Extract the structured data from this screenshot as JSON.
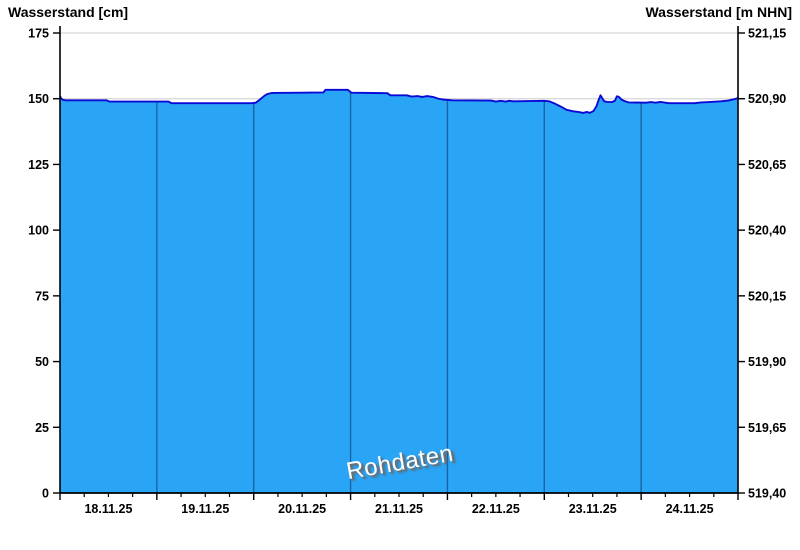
{
  "chart_data": {
    "type": "area",
    "ylabel_left": "Wasserstand [cm]",
    "ylabel_right": "Wasserstand [m NHN]",
    "watermark": "Rohdaten",
    "x_tick_labels": [
      "18.11.25",
      "19.11.25",
      "20.11.25",
      "21.11.25",
      "22.11.25",
      "23.11.25",
      "24.11.25"
    ],
    "left_tick_labels": [
      "0",
      "25",
      "50",
      "75",
      "100",
      "125",
      "150",
      "175"
    ],
    "left_tick_values": [
      0,
      25,
      50,
      75,
      100,
      125,
      150,
      175
    ],
    "right_tick_labels": [
      "519,40",
      "519,65",
      "519,90",
      "520,15",
      "520,40",
      "520,65",
      "520,90",
      "521,15"
    ],
    "ylim_cm": [
      0,
      175
    ],
    "ylim_m_nhn": [
      519.4,
      521.15
    ],
    "x_days": 7,
    "minor_ticks_per_day": 4,
    "grid_on": true,
    "series": [
      {
        "name": "Wasserstand Rohdaten",
        "unit": "cm",
        "points": [
          [
            0.0,
            150.9
          ],
          [
            0.01,
            150.2
          ],
          [
            0.03,
            149.6
          ],
          [
            0.06,
            149.4
          ],
          [
            0.48,
            149.4
          ],
          [
            0.51,
            148.9
          ],
          [
            1.12,
            148.9
          ],
          [
            1.15,
            148.3
          ],
          [
            1.98,
            148.3
          ],
          [
            2.02,
            148.5
          ],
          [
            2.05,
            149.3
          ],
          [
            2.08,
            150.2
          ],
          [
            2.11,
            151.1
          ],
          [
            2.14,
            151.8
          ],
          [
            2.19,
            152.2
          ],
          [
            2.5,
            152.3
          ],
          [
            2.72,
            152.4
          ],
          [
            2.74,
            153.4
          ],
          [
            2.97,
            153.4
          ],
          [
            3.01,
            152.3
          ],
          [
            3.38,
            152.1
          ],
          [
            3.41,
            151.3
          ],
          [
            3.58,
            151.3
          ],
          [
            3.63,
            150.8
          ],
          [
            3.69,
            151.0
          ],
          [
            3.74,
            150.7
          ],
          [
            3.79,
            151.0
          ],
          [
            3.85,
            150.7
          ],
          [
            3.9,
            150.1
          ],
          [
            3.95,
            149.7
          ],
          [
            4.05,
            149.4
          ],
          [
            4.45,
            149.3
          ],
          [
            4.5,
            148.9
          ],
          [
            4.55,
            149.2
          ],
          [
            4.6,
            148.9
          ],
          [
            4.64,
            149.2
          ],
          [
            4.68,
            149.0
          ],
          [
            5.0,
            149.2
          ],
          [
            5.05,
            149.0
          ],
          [
            5.1,
            148.3
          ],
          [
            5.17,
            147.0
          ],
          [
            5.23,
            145.8
          ],
          [
            5.3,
            145.2
          ],
          [
            5.36,
            144.9
          ],
          [
            5.4,
            144.6
          ],
          [
            5.44,
            145.0
          ],
          [
            5.47,
            144.6
          ],
          [
            5.51,
            145.4
          ],
          [
            5.54,
            147.3
          ],
          [
            5.56,
            149.4
          ],
          [
            5.58,
            151.3
          ],
          [
            5.6,
            150.1
          ],
          [
            5.62,
            149.0
          ],
          [
            5.65,
            148.8
          ],
          [
            5.7,
            148.7
          ],
          [
            5.73,
            149.3
          ],
          [
            5.75,
            150.9
          ],
          [
            5.77,
            150.7
          ],
          [
            5.8,
            149.6
          ],
          [
            5.83,
            149.1
          ],
          [
            5.87,
            148.6
          ],
          [
            6.05,
            148.5
          ],
          [
            6.1,
            148.7
          ],
          [
            6.15,
            148.5
          ],
          [
            6.2,
            148.8
          ],
          [
            6.25,
            148.5
          ],
          [
            6.29,
            148.3
          ],
          [
            6.55,
            148.3
          ],
          [
            6.62,
            148.6
          ],
          [
            6.72,
            148.8
          ],
          [
            6.82,
            149.0
          ],
          [
            6.9,
            149.3
          ],
          [
            6.96,
            149.8
          ],
          [
            6.99,
            150.1
          ],
          [
            7.0,
            150.5
          ]
        ]
      }
    ],
    "colors": {
      "fill": "#2aa5f6",
      "line": "#0a0ad6",
      "grid": "#d6d6d6",
      "axis": "#000000",
      "day_divider": "rgba(0,12,48,0.42)",
      "tick_label": "#000000"
    }
  }
}
